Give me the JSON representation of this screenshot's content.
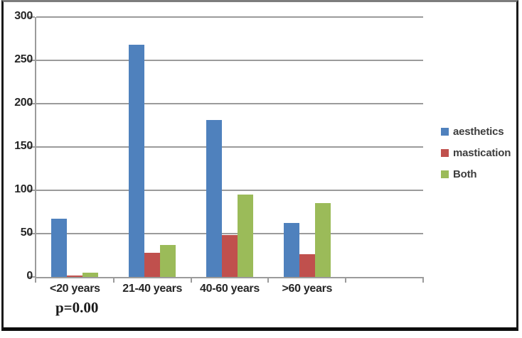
{
  "window": {
    "background": "#ffffff",
    "frame_border_color": "#1a1a1a",
    "frame_top_border_color": "#7d7d7d"
  },
  "chart_data": {
    "type": "bar",
    "title": "",
    "xlabel": "",
    "ylabel": "",
    "categories": [
      "<20 years",
      "21-40 years",
      "40-60 years",
      ">60 years"
    ],
    "series": [
      {
        "name": "aesthetics",
        "color": "#4f81bd",
        "values": [
          67,
          268,
          181,
          62
        ]
      },
      {
        "name": "mastication",
        "color": "#c0504d",
        "values": [
          2,
          28,
          48,
          26
        ]
      },
      {
        "name": "Both",
        "color": "#9bbb59",
        "values": [
          5,
          37,
          95,
          85
        ]
      }
    ],
    "ylim": [
      0,
      300
    ],
    "yticks": [
      0,
      50,
      100,
      150,
      200,
      250,
      300
    ],
    "grid": true,
    "legend_position": "right",
    "empty_trailing_category_slots": 1,
    "annotation": "p=0.00",
    "colors": {
      "gridline": "#9b9b9b",
      "axis": "#9b9b9b",
      "tick_label": "#262626",
      "legend_text": "#3d3d3d",
      "annotation_text": "#1a1a1a"
    }
  }
}
